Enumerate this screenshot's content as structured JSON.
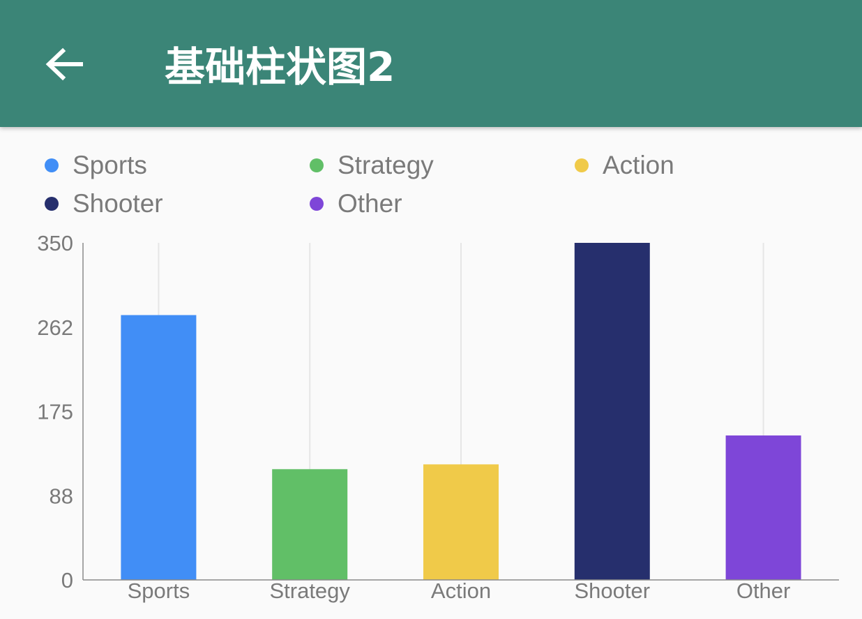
{
  "app_bar": {
    "title": "基础柱状图2",
    "back_icon": "arrow-left-icon",
    "background_color": "#3b8577"
  },
  "chart_data": {
    "type": "bar",
    "categories": [
      "Sports",
      "Strategy",
      "Action",
      "Shooter",
      "Other"
    ],
    "values": [
      275,
      115,
      120,
      350,
      150
    ],
    "colors": [
      "#418ef6",
      "#61bf67",
      "#f0ca49",
      "#262f6d",
      "#7e46d8"
    ],
    "legend": [
      "Sports",
      "Strategy",
      "Action",
      "Shooter",
      "Other"
    ],
    "legend_position": "top",
    "y_ticks": [
      "0",
      "88",
      "175",
      "262",
      "350"
    ],
    "ylim": [
      0,
      350
    ],
    "grid": "vertical"
  }
}
